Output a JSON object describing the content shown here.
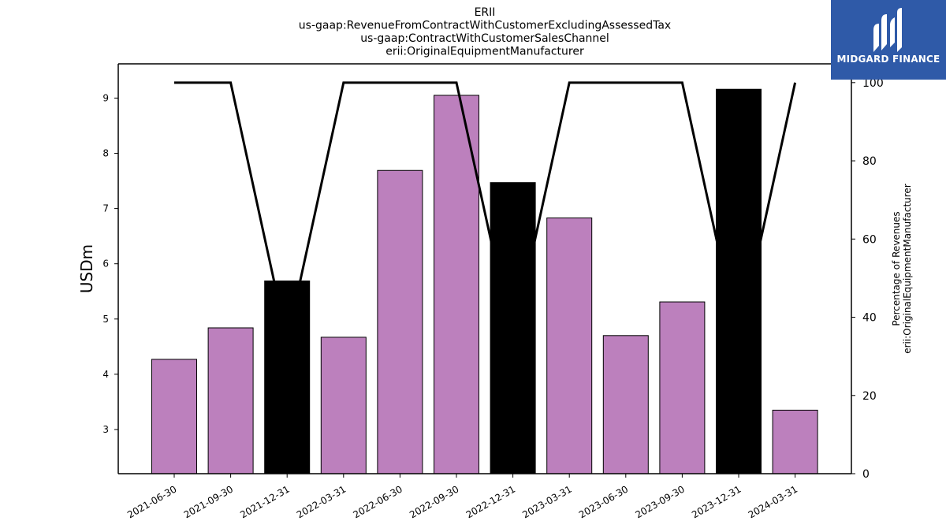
{
  "logo": {
    "text": "MIDGARD FINANCE",
    "icon": "midgard-finance-logo-icon",
    "bg_color": "#2f5aa8"
  },
  "chart_data": {
    "type": "bar",
    "title_lines": [
      "ERII",
      "us-gaap:RevenueFromContractWithCustomerExcludingAssessedTax",
      "us-gaap:ContractWithCustomerSalesChannel",
      "erii:OriginalEquipmentManufacturer"
    ],
    "categories": [
      "2021-06-30",
      "2021-09-30",
      "2021-12-31",
      "2022-03-31",
      "2022-06-30",
      "2022-09-30",
      "2022-12-31",
      "2023-03-31",
      "2023-06-30",
      "2023-09-30",
      "2023-12-31",
      "2024-03-31"
    ],
    "values": [
      4.27,
      4.84,
      5.69,
      4.67,
      7.69,
      9.05,
      7.47,
      6.83,
      4.7,
      5.31,
      9.16,
      3.35
    ],
    "bar_colors": [
      "#bc80bd",
      "#bc80bd",
      "#000000",
      "#bc80bd",
      "#bc80bd",
      "#bc80bd",
      "#000000",
      "#bc80bd",
      "#bc80bd",
      "#bc80bd",
      "#000000",
      "#bc80bd"
    ],
    "ylabel": "USDm",
    "ylim": [
      2.2,
      9.62
    ],
    "yticks": [
      3,
      4,
      5,
      6,
      7,
      8,
      9
    ],
    "secondary": {
      "type": "line",
      "values": [
        100,
        100,
        34,
        100,
        100,
        100,
        34,
        100,
        100,
        100,
        34,
        100
      ],
      "color": "#000000",
      "ylabel_lines": [
        "Percentage of Revenues",
        "erii:OriginalEquipmentManufacturer"
      ],
      "ylim": [
        0,
        104.8
      ],
      "yticks": [
        0,
        20,
        40,
        60,
        80,
        100
      ]
    },
    "grid": false,
    "xtick_rotation": 30
  }
}
